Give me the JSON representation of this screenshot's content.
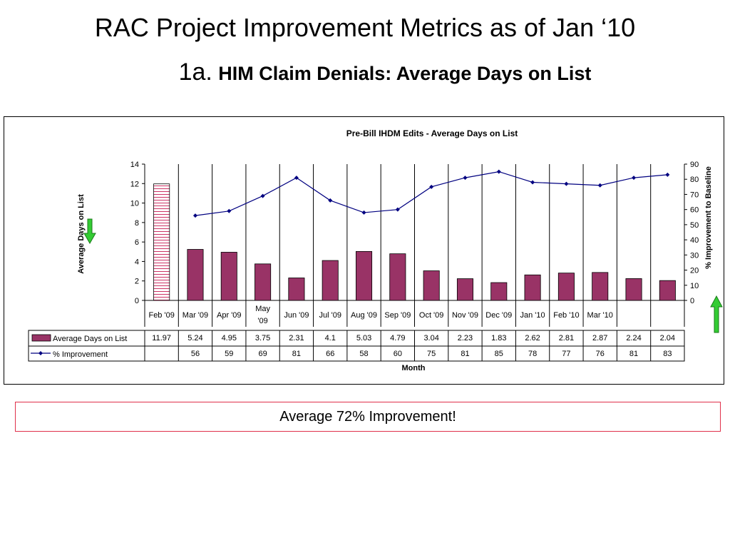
{
  "slide": {
    "title": "RAC Project Improvement Metrics as of Jan ‘10",
    "subtitle_prefix": "1a.",
    "subtitle_main": "HIM Claim Denials: Average Days on List"
  },
  "callout": {
    "text": "Average 72% Improvement!"
  },
  "chart_data": {
    "type": "bar",
    "title": "Pre-Bill IHDM Edits - Average Days on List",
    "xlabel": "Month",
    "ylabel": "Average Days on List",
    "y2label": "% Improvement to Baseline",
    "ylim": [
      0,
      14
    ],
    "y2lim": [
      0,
      90
    ],
    "yticks": [
      0,
      2,
      4,
      6,
      8,
      10,
      12,
      14
    ],
    "y2ticks": [
      0,
      10,
      20,
      30,
      40,
      50,
      60,
      70,
      80,
      90
    ],
    "categories": [
      "Feb '09",
      "Mar '09",
      "Apr '09",
      "May '09",
      "Jun '09",
      "Jul '09",
      "Aug '09",
      "Sep '09",
      "Oct '09",
      "Nov '09",
      "Dec '09",
      "Jan '10",
      "Feb '10",
      "Mar '10",
      "",
      ""
    ],
    "category_lines": [
      [
        "Feb '09"
      ],
      [
        "Mar '09"
      ],
      [
        "Apr '09"
      ],
      [
        "May",
        "'09"
      ],
      [
        "Jun '09"
      ],
      [
        "Jul '09"
      ],
      [
        "Aug '09"
      ],
      [
        "Sep '09"
      ],
      [
        "Oct '09"
      ],
      [
        "Nov '09"
      ],
      [
        "Dec '09"
      ],
      [
        "Jan '10"
      ],
      [
        "Feb '10"
      ],
      [
        "Mar '10"
      ],
      [
        ""
      ],
      [
        ""
      ]
    ],
    "bar_values": [
      11.97,
      5.24,
      4.95,
      3.75,
      2.31,
      4.1,
      5.03,
      4.79,
      3.04,
      2.23,
      1.83,
      2.62,
      2.81,
      2.87,
      2.24,
      2.04
    ],
    "bar_labels": [
      "11.97",
      "5.24",
      "4.95",
      "3.75",
      "2.31",
      "4.1",
      "5.03",
      "4.79",
      "3.04",
      "2.23",
      "1.83",
      "2.62",
      "2.81",
      "2.87",
      "2.24",
      "2.04"
    ],
    "line_values": [
      null,
      56,
      59,
      69,
      81,
      66,
      58,
      60,
      75,
      81,
      85,
      78,
      77,
      76,
      81,
      83
    ],
    "line_labels": [
      "",
      "56",
      "59",
      "69",
      "81",
      "66",
      "58",
      "60",
      "75",
      "81",
      "85",
      "78",
      "77",
      "76",
      "81",
      "83"
    ],
    "series": [
      {
        "name": "Average Days on List",
        "axis": "left",
        "kind": "bar"
      },
      {
        "name": "% Improvement",
        "axis": "right",
        "kind": "line"
      }
    ],
    "colors": {
      "bar": "#993366",
      "line": "#000080",
      "baseline_hatch": "#cc3366"
    },
    "grid": "vertical category lines",
    "legend": "data table"
  }
}
